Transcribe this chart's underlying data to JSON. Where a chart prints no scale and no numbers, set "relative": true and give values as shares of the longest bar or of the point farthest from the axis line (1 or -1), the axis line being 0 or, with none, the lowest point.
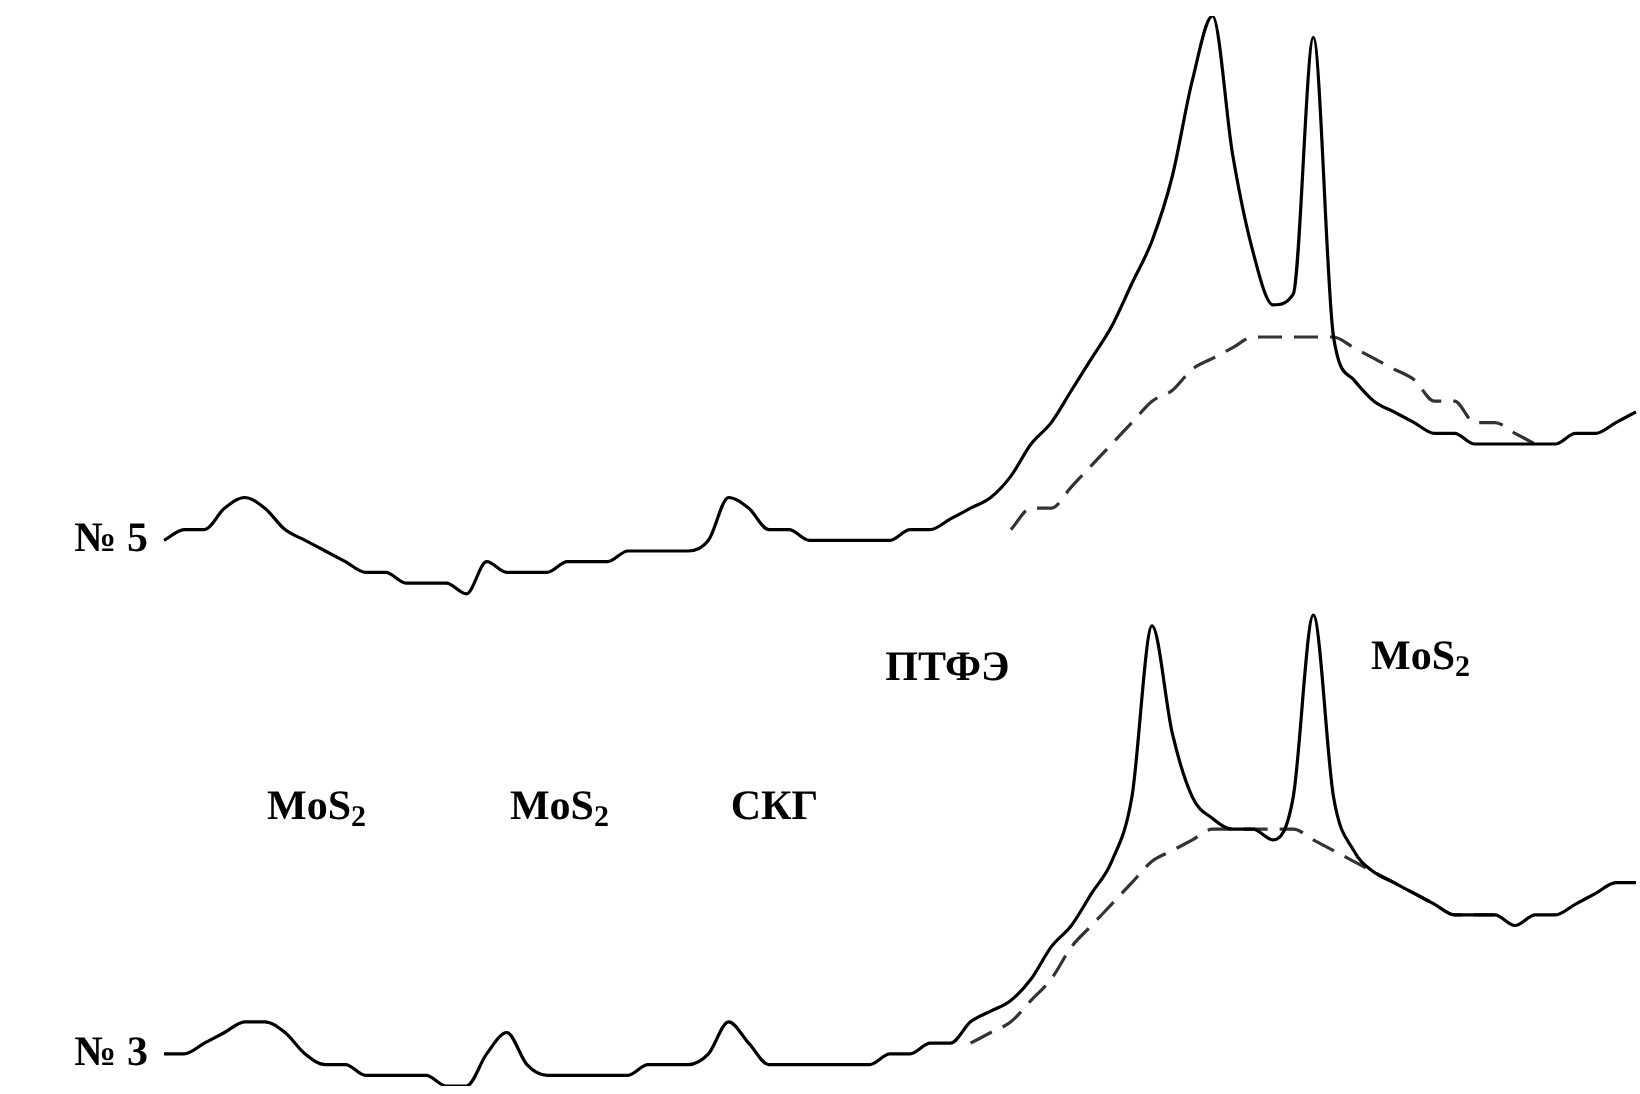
{
  "chart_data": {
    "type": "line",
    "relative": true,
    "legend": false,
    "marker": "none",
    "categories": [
      null,
      null,
      null,
      null,
      null,
      null,
      null,
      null,
      null,
      null,
      null,
      null,
      null,
      null,
      null,
      null,
      null,
      null,
      null,
      null,
      null,
      null,
      null,
      null,
      null,
      null,
      null,
      null,
      null,
      null,
      null,
      null,
      null,
      null,
      null,
      null,
      null,
      null,
      null,
      null,
      null,
      null,
      null,
      null,
      null,
      null,
      null,
      null,
      null,
      null,
      null,
      null,
      null,
      null,
      null,
      null,
      null,
      null,
      null,
      null,
      null,
      null,
      null,
      null,
      null,
      null,
      null,
      null,
      null,
      null,
      null,
      null,
      null,
      null
    ],
    "series": [
      {
        "name": "№ 5",
        "color": "#000000",
        "line_style": "solid",
        "values": [
          0.51,
          0.52,
          0.52,
          0.54,
          0.55,
          0.54,
          0.52,
          0.51,
          0.5,
          0.49,
          0.48,
          0.48,
          0.47,
          0.47,
          0.47,
          0.46,
          0.49,
          0.48,
          0.48,
          0.48,
          0.49,
          0.49,
          0.49,
          0.5,
          0.5,
          0.5,
          0.5,
          0.51,
          0.55,
          0.54,
          0.52,
          0.52,
          0.51,
          0.51,
          0.51,
          0.51,
          0.51,
          0.52,
          0.52,
          0.53,
          0.54,
          0.55,
          0.57,
          0.6,
          0.62,
          0.65,
          0.68,
          0.71,
          0.75,
          0.79,
          0.85,
          0.94,
          1,
          0.87,
          0.78,
          0.73,
          0.74,
          0.98,
          0.7,
          0.66,
          0.64,
          0.63,
          0.62,
          0.61,
          0.61,
          0.6,
          0.6,
          0.6,
          0.6,
          0.6,
          0.61,
          0.61,
          0.62,
          0.63
        ]
      },
      {
        "color": "#333333",
        "line_style": "dashed",
        "values": [
          null,
          null,
          null,
          null,
          null,
          null,
          null,
          null,
          null,
          null,
          null,
          null,
          null,
          null,
          null,
          null,
          null,
          null,
          null,
          null,
          null,
          null,
          null,
          null,
          null,
          null,
          null,
          null,
          null,
          null,
          null,
          null,
          null,
          null,
          null,
          null,
          null,
          null,
          null,
          null,
          null,
          null,
          0.52,
          0.54,
          0.54,
          0.56,
          0.58,
          0.6,
          0.62,
          0.64,
          0.65,
          0.67,
          0.68,
          0.69,
          0.7,
          0.7,
          0.7,
          0.7,
          0.7,
          0.69,
          0.68,
          0.67,
          0.66,
          0.64,
          0.64,
          0.62,
          0.62,
          0.61,
          0.6,
          null,
          null,
          null,
          null,
          null
        ]
      },
      {
        "name": "№ 3",
        "color": "#000000",
        "line_style": "solid",
        "values": [
          0.03,
          0.03,
          0.04,
          0.05,
          0.06,
          0.06,
          0.05,
          0.03,
          0.02,
          0.02,
          0.01,
          0.01,
          0.01,
          0.01,
          0,
          0,
          0.03,
          0.05,
          0.02,
          0.01,
          0.01,
          0.01,
          0.01,
          0.01,
          0.02,
          0.02,
          0.02,
          0.03,
          0.06,
          0.04,
          0.02,
          0.02,
          0.02,
          0.02,
          0.02,
          0.02,
          0.03,
          0.03,
          0.04,
          0.04,
          0.06,
          0.07,
          0.08,
          0.1,
          0.13,
          0.15,
          0.18,
          0.21,
          0.27,
          0.43,
          0.33,
          0.27,
          0.25,
          0.24,
          0.24,
          0.23,
          0.27,
          0.44,
          0.27,
          0.22,
          0.2,
          0.19,
          0.18,
          0.17,
          0.16,
          0.16,
          0.16,
          0.15,
          0.16,
          0.16,
          0.17,
          0.18,
          0.19,
          0.19
        ]
      },
      {
        "color": "#333333",
        "line_style": "dashed",
        "values": [
          null,
          null,
          null,
          null,
          null,
          null,
          null,
          null,
          null,
          null,
          null,
          null,
          null,
          null,
          null,
          null,
          null,
          null,
          null,
          null,
          null,
          null,
          null,
          null,
          null,
          null,
          null,
          null,
          null,
          null,
          null,
          null,
          null,
          null,
          null,
          null,
          null,
          null,
          null,
          null,
          0.04,
          0.05,
          0.06,
          0.08,
          0.1,
          0.13,
          0.15,
          0.17,
          0.19,
          0.21,
          0.22,
          0.23,
          0.24,
          0.24,
          0.24,
          0.24,
          0.24,
          0.23,
          0.22,
          0.21,
          0.2,
          0.19,
          0.18,
          0.17,
          0.16,
          0.16,
          0.16,
          null,
          null,
          null,
          null,
          null,
          null,
          null
        ]
      }
    ],
    "annotations": [
      "MoS$_{2}$",
      "MoS$_{2}$",
      "СКГ",
      "ПТФЭ",
      "MoS$_{2}$"
    ]
  }
}
